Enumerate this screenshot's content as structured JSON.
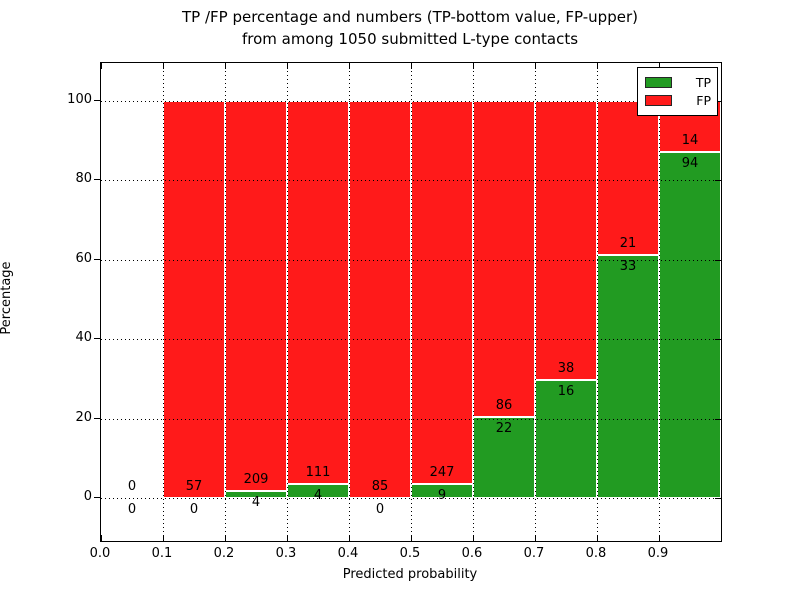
{
  "header": {
    "line1": "TP /FP percentage and numbers (TP-bottom value, FP-upper)",
    "line2": "from among 1050 submitted L-type contacts"
  },
  "chart_data": {
    "type": "bar",
    "stacked": true,
    "title": "TP /FP percentage and numbers (TP-bottom value, FP-upper) from among 1050 submitted L-type contacts",
    "xlabel": "Predicted probability",
    "ylabel": "Percentage",
    "categories": [
      "0.0-0.1",
      "0.1-0.2",
      "0.2-0.3",
      "0.3-0.4",
      "0.4-0.5",
      "0.5-0.6",
      "0.6-0.7",
      "0.7-0.8",
      "0.8-0.9",
      "0.9-1.0"
    ],
    "series": [
      {
        "name": "TP",
        "color": "#229b22",
        "counts": [
          0,
          0,
          4,
          4,
          0,
          9,
          22,
          16,
          33,
          94
        ]
      },
      {
        "name": "FP",
        "color": "#ff1a1a",
        "counts": [
          0,
          57,
          209,
          111,
          85,
          247,
          86,
          38,
          21,
          14
        ]
      }
    ],
    "bar_value_mode": "percentage = TP / (TP + FP) * 100 per bin",
    "x_ticks": [
      "0.0",
      "0.1",
      "0.2",
      "0.3",
      "0.4",
      "0.5",
      "0.6",
      "0.7",
      "0.8",
      "0.9"
    ],
    "y_ticks": [
      0,
      20,
      40,
      60,
      80,
      100
    ],
    "xlim": [
      0.0,
      1.0
    ],
    "ylim": [
      -11,
      110
    ],
    "grid": "dotted black, both axes",
    "legend": {
      "position": "upper right",
      "entries": [
        "TP",
        "FP"
      ]
    }
  },
  "colors": {
    "tp_green": "#229b22",
    "fp_red": "#ff1a1a",
    "axis": "#000000",
    "background": "#ffffff"
  }
}
